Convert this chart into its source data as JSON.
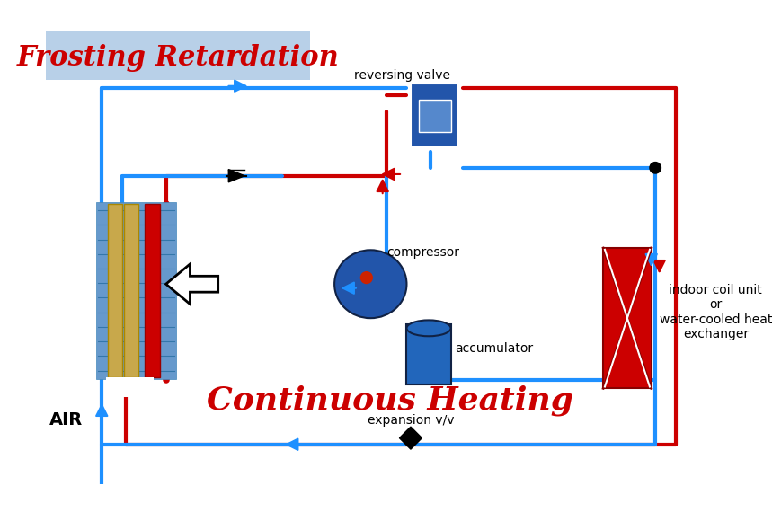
{
  "title": "Frosting Retardation",
  "subtitle": "Continuous Heating",
  "title_bg": "#b8d0e8",
  "title_color": "#cc0000",
  "subtitle_color": "#cc0000",
  "line_blue": "#1e90ff",
  "line_red": "#cc0000",
  "line_width": 2.5,
  "compressor_color": "#2255aa",
  "accumulator_color": "#2266bb",
  "reversing_valve_color": "#2255aa",
  "indoor_coil_color": "#cc0000",
  "fin_blue": "#6699cc",
  "fin_tan": "#c8a84b",
  "fin_red": "#cc0000",
  "arrow_blue": "#1e90ff",
  "arrow_red": "#cc0000",
  "dot_color": "#111111",
  "labels": {
    "reversing_valve": "reversing valve",
    "compressor": "compressor",
    "accumulator": "accumulator",
    "expansion": "expansion v/v",
    "indoor_coil": "indoor coil unit\nor\nwater-cooled heat\nexchanger",
    "air": "AIR"
  }
}
